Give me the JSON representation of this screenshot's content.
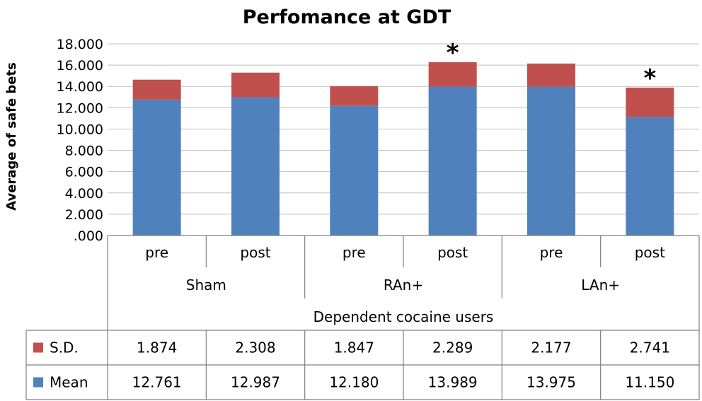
{
  "chart_data": {
    "type": "bar",
    "stacked": true,
    "title": "Perfomance at GDT",
    "ylabel": "Average of safe bets",
    "xlabel": "Dependent cocaine users",
    "ylim": [
      0,
      18
    ],
    "yticks": [
      ".000",
      "2.000",
      "4.000",
      "6.000",
      "8.000",
      "10.000",
      "12.000",
      "14.000",
      "16.000",
      "18.000"
    ],
    "categories": [
      "pre",
      "post",
      "pre",
      "post",
      "pre",
      "post"
    ],
    "groups": [
      "Sham",
      "RAn+",
      "LAn+"
    ],
    "series": [
      {
        "name": "Mean",
        "color": "#4f81bd",
        "values": [
          12.761,
          12.987,
          12.18,
          13.989,
          13.975,
          11.15
        ],
        "labels": [
          "12.761",
          "12.987",
          "12.180",
          "13.989",
          "13.975",
          "11.150"
        ]
      },
      {
        "name": "S.D.",
        "color": "#c0504d",
        "values": [
          1.874,
          2.308,
          1.847,
          2.289,
          2.177,
          2.741
        ],
        "labels": [
          "1.874",
          "2.308",
          "1.847",
          "2.289",
          "2.177",
          "2.741"
        ]
      }
    ],
    "annotations": [
      "",
      "",
      "",
      "*",
      "",
      "*"
    ],
    "grid": true,
    "legend": "data-table-left"
  }
}
